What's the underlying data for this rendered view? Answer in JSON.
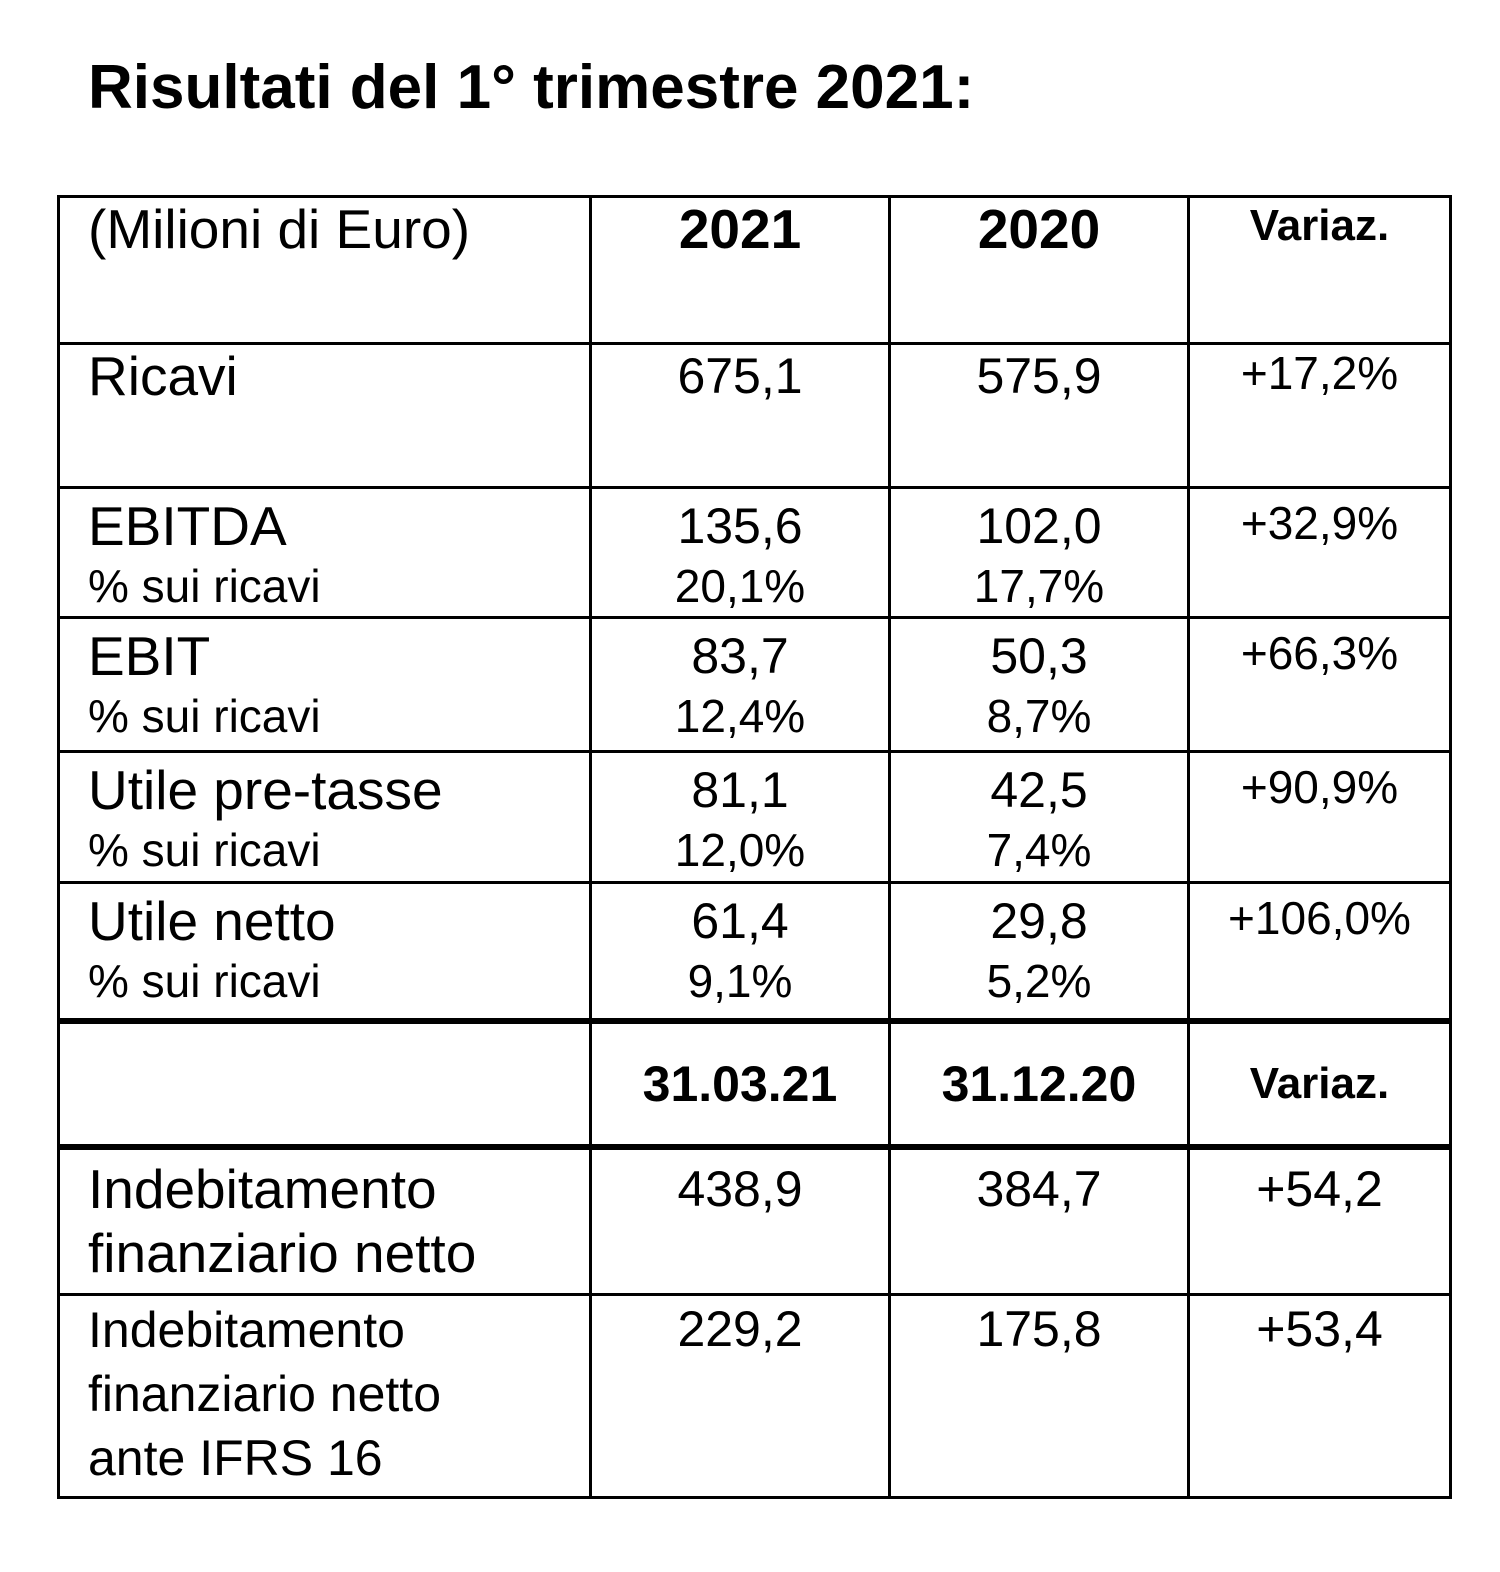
{
  "title": "Risultati del 1° trimestre 2021:",
  "table": {
    "header1": {
      "label": "(Milioni di Euro)",
      "col1": "2021",
      "col2": "2020",
      "col3": "Variaz."
    },
    "rows": [
      {
        "label": "Ricavi",
        "v2021": "675,1",
        "v2020": "575,9",
        "variaz": "+17,2%"
      },
      {
        "label": "EBITDA",
        "v2021": "135,6",
        "v2020": "102,0",
        "variaz": "+32,9%",
        "sub_label": "% sui ricavi",
        "sub2021": "20,1%",
        "sub2020": "17,7%"
      },
      {
        "label": "EBIT",
        "v2021": "83,7",
        "v2020": "50,3",
        "variaz": "+66,3%",
        "sub_label": "% sui ricavi",
        "sub2021": "12,4%",
        "sub2020": "8,7%"
      },
      {
        "label": "Utile pre-tasse",
        "v2021": "81,1",
        "v2020": "42,5",
        "variaz": "+90,9%",
        "sub_label": "% sui ricavi",
        "sub2021": "12,0%",
        "sub2020": "7,4%"
      },
      {
        "label": "Utile netto",
        "v2021": "61,4",
        "v2020": "29,8",
        "variaz": "+106,0%",
        "sub_label": "% sui ricavi",
        "sub2021": "9,1%",
        "sub2020": "5,2%"
      }
    ],
    "header2": {
      "label": "",
      "col1": "31.03.21",
      "col2": "31.12.20",
      "col3": "Variaz."
    },
    "debt_rows": [
      {
        "label_line1": "Indebitamento",
        "label_line2": "finanziario netto",
        "v1": "438,9",
        "v2": "384,7",
        "variaz": "+54,2"
      },
      {
        "label_line1": "Indebitamento",
        "label_line2": "finanziario netto",
        "label_line3": "ante IFRS 16",
        "v1": "229,2",
        "v2": "175,8",
        "variaz": "+53,4"
      }
    ]
  }
}
